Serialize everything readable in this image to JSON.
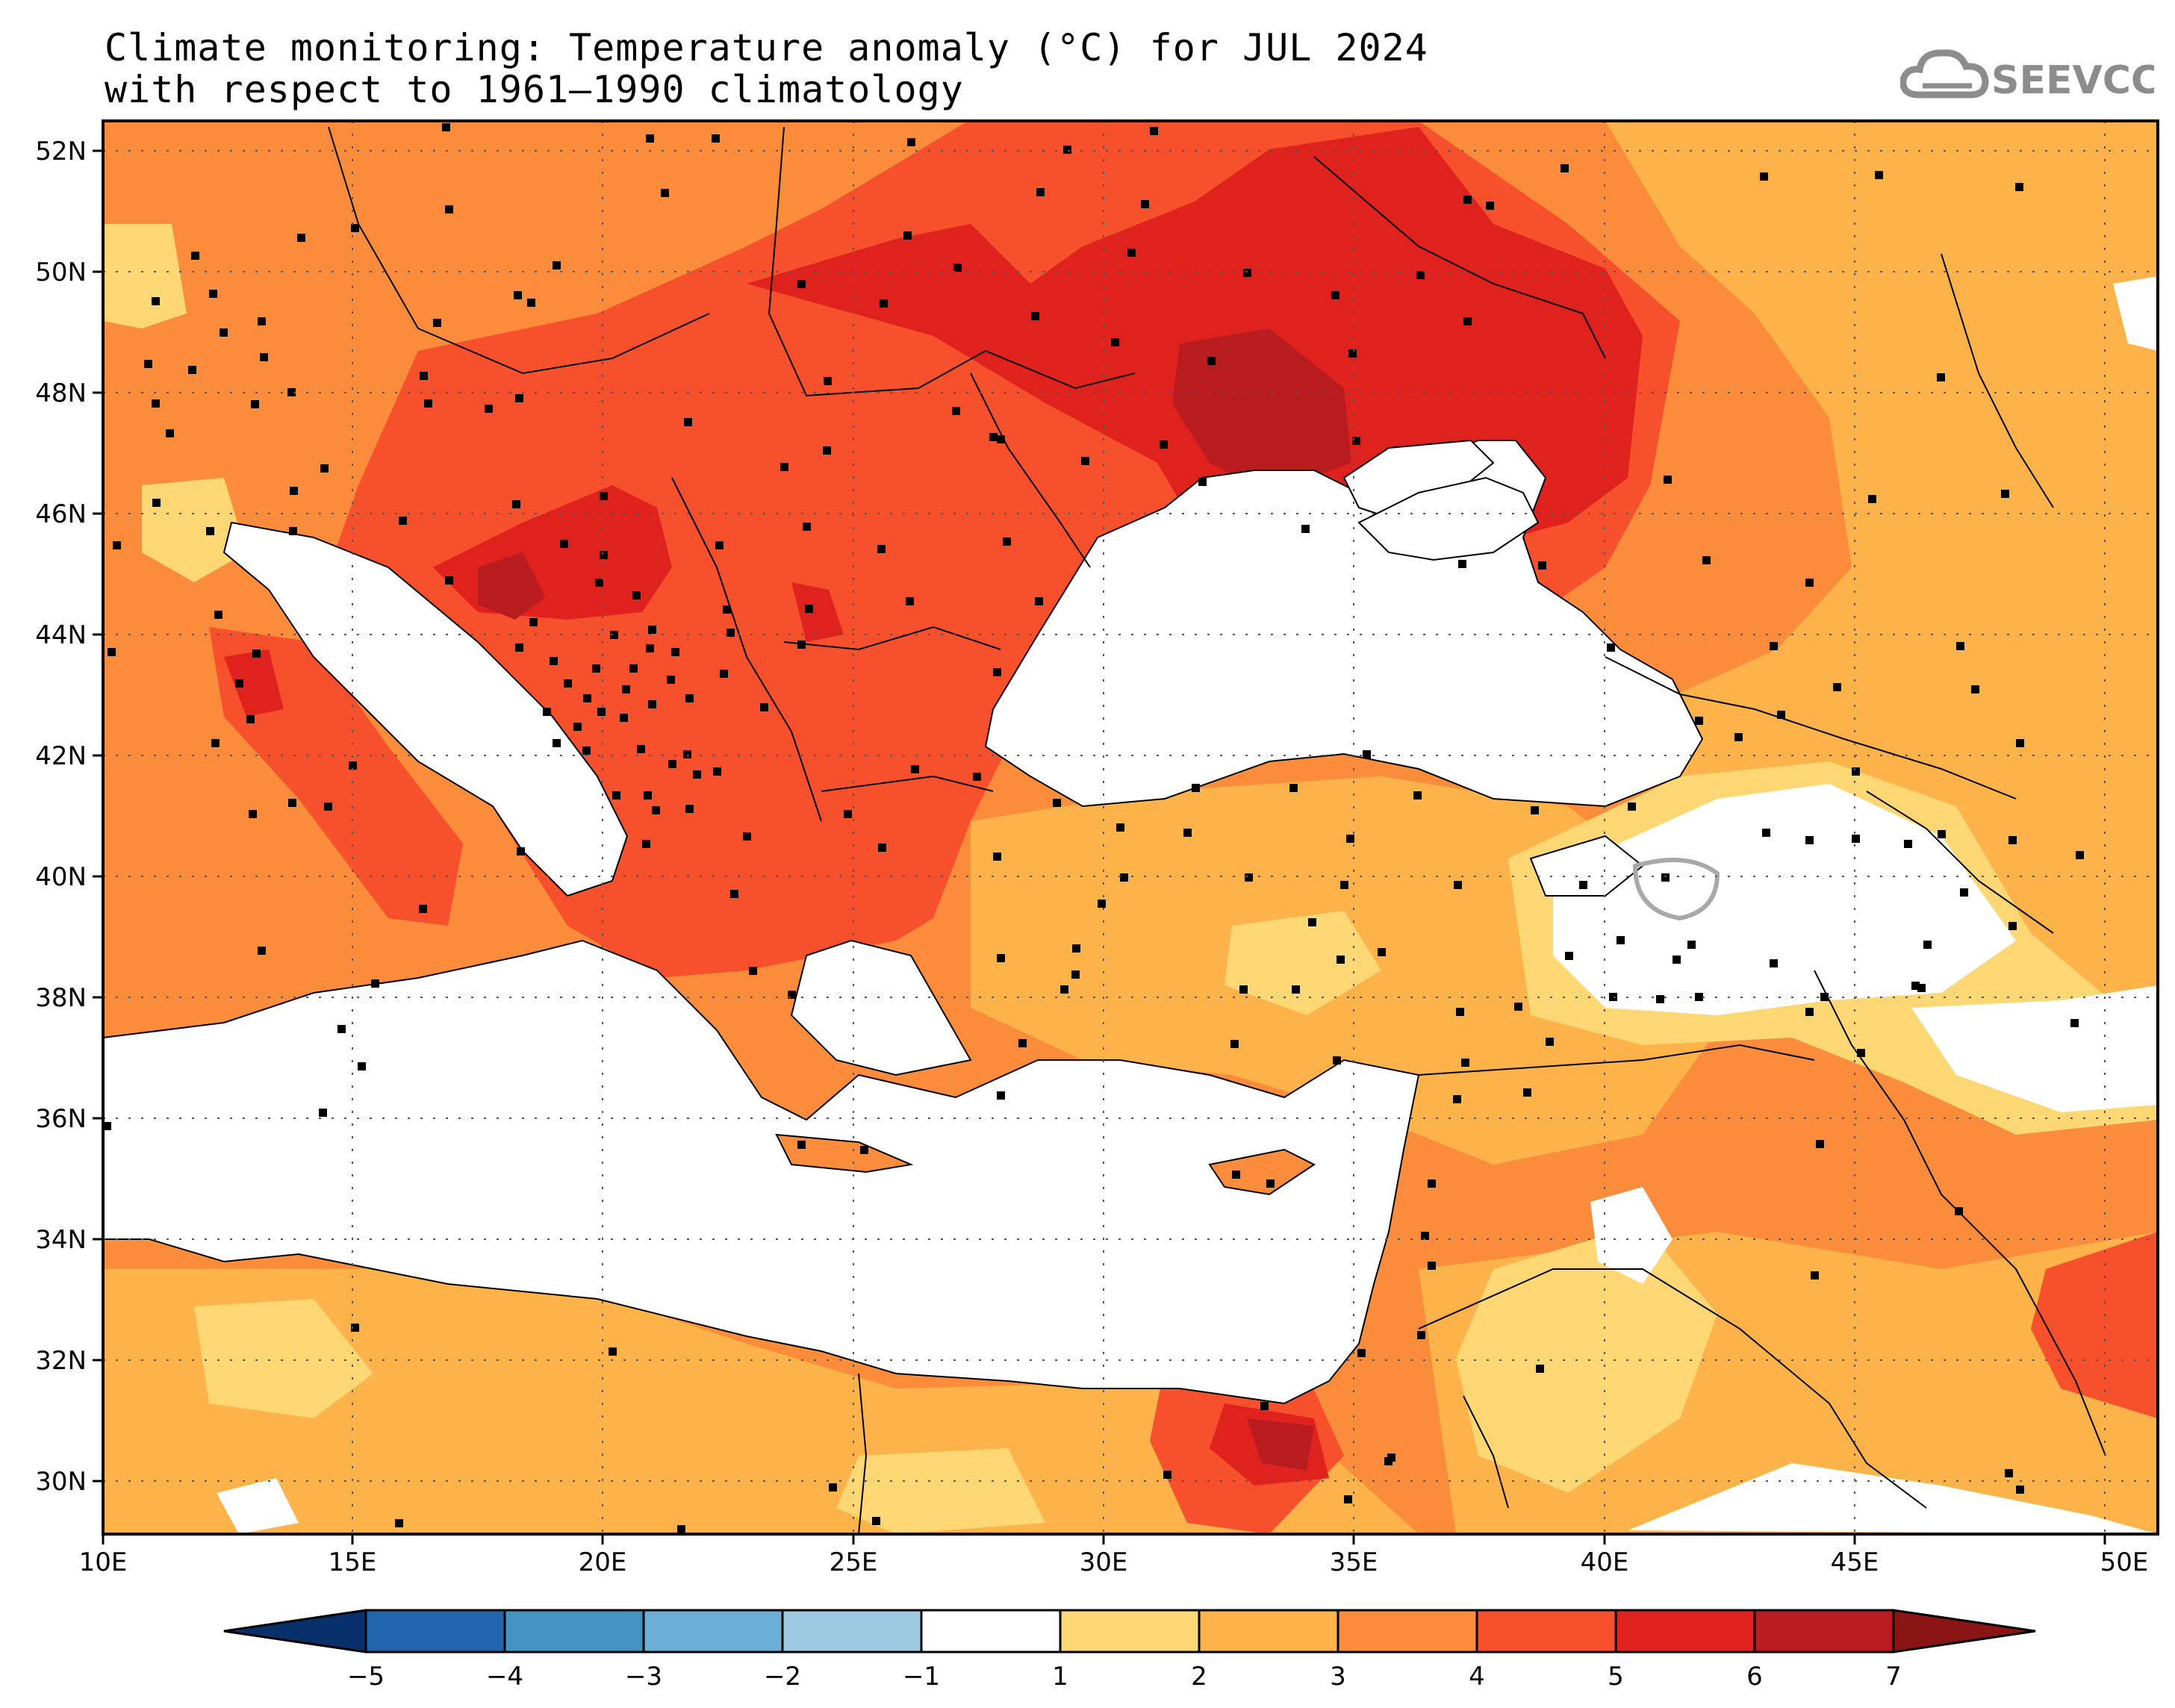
{
  "title": {
    "line1": "Climate monitoring: Temperature anomaly (°C) for JUL 2024",
    "line2": "with respect to 1961–1990 climatology"
  },
  "logo": {
    "text": "SEEVCCC",
    "icon": "cloud-icon"
  },
  "map": {
    "region": "Southeast Europe, Black Sea, Anatolia, Eastern Mediterranean, Middle East",
    "lat_labels": [
      "52N",
      "50N",
      "48N",
      "46N",
      "44N",
      "42N",
      "40N",
      "38N",
      "36N",
      "34N",
      "32N",
      "30N"
    ],
    "lon_labels": [
      "10E",
      "15E",
      "20E",
      "25E",
      "30E",
      "35E",
      "40E",
      "45E",
      "50E"
    ]
  },
  "colorbar": {
    "labels": [
      "−5",
      "−4",
      "−3",
      "−2",
      "−1",
      "1",
      "2",
      "3",
      "4",
      "5",
      "6",
      "7"
    ],
    "colors": [
      "#08306b",
      "#2166ac",
      "#4393c3",
      "#6baed6",
      "#9ecae1",
      "#ffffff",
      "#fdd773",
      "#fdb24a",
      "#fb8c3c",
      "#f6502d",
      "#e0221e",
      "#b81c1e",
      "#8b1414"
    ]
  },
  "colors": {
    "anomaly_1_2": "#fdd773",
    "anomaly_2_3": "#fdb24a",
    "anomaly_3_4": "#fb8c3c",
    "anomaly_4_5": "#f6502d",
    "anomaly_5_6": "#e0221e",
    "anomaly_6_7": "#b81c1e",
    "water": "#ffffff"
  }
}
